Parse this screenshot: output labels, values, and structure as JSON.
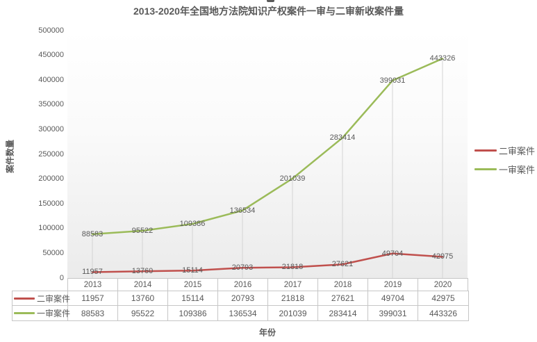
{
  "chart_data": {
    "type": "line",
    "title": "2013-2020年全国地方法院知识产权案件一审与二审新收案件量",
    "xlabel": "年份",
    "ylabel": "案件数量",
    "categories": [
      "2013",
      "2014",
      "2015",
      "2016",
      "2017",
      "2018",
      "2019",
      "2020"
    ],
    "series": [
      {
        "name": "二审案件",
        "color": "#C0504D",
        "values": [
          11957,
          13760,
          15114,
          20793,
          21818,
          27621,
          49704,
          42975
        ]
      },
      {
        "name": "一审案件",
        "color": "#9BBB59",
        "values": [
          88583,
          95522,
          109386,
          136534,
          201039,
          283414,
          399031,
          443326
        ]
      }
    ],
    "ylim": [
      0,
      500000
    ],
    "ytick_step": 50000,
    "grid": "vertical-drop-lines-only",
    "legend_position": "right",
    "data_labels": "centered-on-points",
    "data_table_with_legend_keys": true,
    "colors": {
      "text": "#595959",
      "border": "#c6c6c6",
      "drop_line": "#d4d4d4",
      "plot_bg_top": "#ffffff",
      "plot_bg_bottom": "#ebebeb"
    }
  }
}
